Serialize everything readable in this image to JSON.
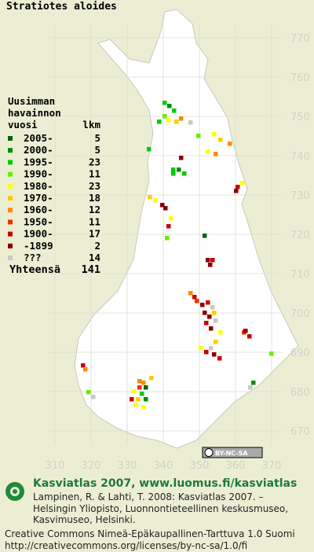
{
  "map": {
    "title": "Stratiotes aloides",
    "northing_ticks": [
      770,
      760,
      750,
      740,
      730,
      720,
      710,
      700,
      690,
      680,
      670
    ],
    "easting_ticks": [
      310,
      320,
      330,
      340,
      350,
      360,
      370
    ],
    "legend": {
      "heading": [
        "Uusimman",
        "havainnon",
        "vuosi"
      ],
      "count_heading": "lkm",
      "rows": [
        {
          "label": "2005-",
          "count": 5,
          "color": "#006400"
        },
        {
          "label": "2000-",
          "count": 5,
          "color": "#009000"
        },
        {
          "label": "1995-",
          "count": 23,
          "color": "#00cc00"
        },
        {
          "label": "1990-",
          "count": 11,
          "color": "#66ee00"
        },
        {
          "label": "1980-",
          "count": 23,
          "color": "#ffff00"
        },
        {
          "label": "1970-",
          "count": 18,
          "color": "#ffcc00"
        },
        {
          "label": "1960-",
          "count": 12,
          "color": "#ff8800"
        },
        {
          "label": "1950-",
          "count": 11,
          "color": "#ee3300"
        },
        {
          "label": "1900-",
          "count": 17,
          "color": "#cc0000"
        },
        {
          "label": "-1899",
          "count": 2,
          "color": "#8b0000"
        },
        {
          "label": "???",
          "count": 14,
          "color": "#c8c8c8"
        }
      ],
      "total_label": "Yhteensä",
      "total": 141
    },
    "license_badge": "BY-NC-SA"
  },
  "footer": {
    "title": "Kasviatlas 2007, www.luomus.fi/kasviatlas",
    "citation": [
      "Lampinen, R. & Lahti, T. 2008: Kasviatlas 2007. –",
      "Helsingin Yliopisto, Luonnontieteellinen keskusmuseo,",
      "Kasvimuseo, Helsinki."
    ],
    "license": [
      "Creative Commons Nimeä-Epäkaupallinen-Tarttuva 1.0 Suomi",
      "http://creativecommons.org/licenses/by-nc-sa/1.0/fi"
    ]
  }
}
